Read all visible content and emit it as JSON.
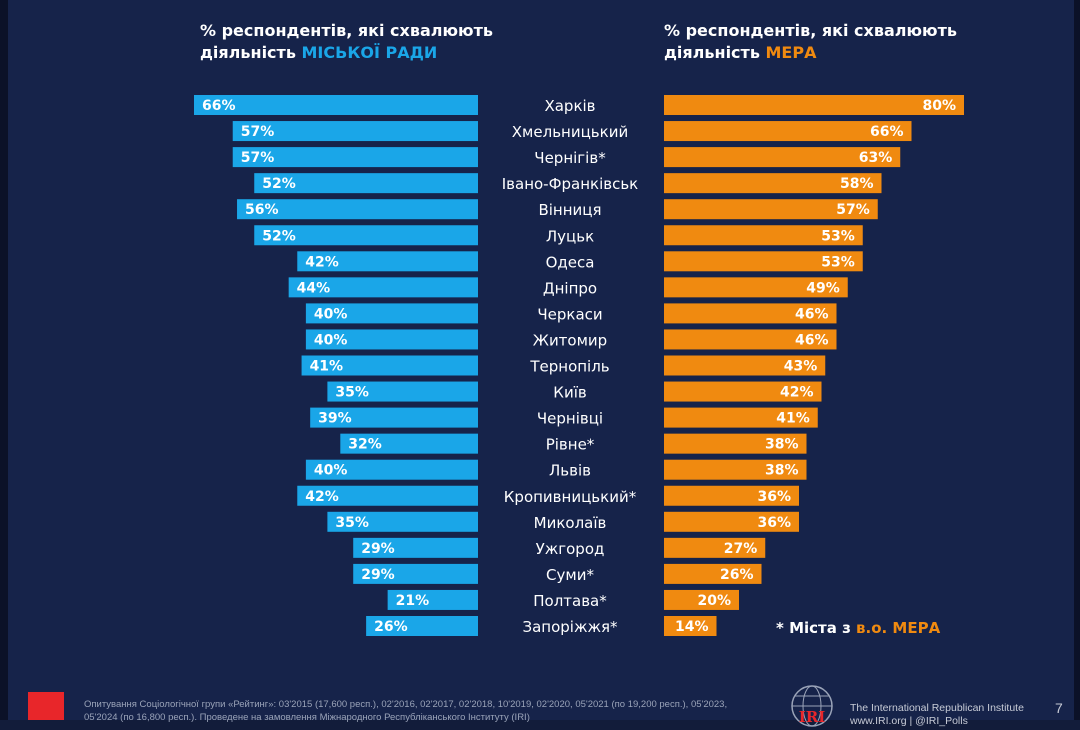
{
  "heading_left": {
    "line1": "% респондентів, які схвалюють",
    "line2_prefix": "діяльність ",
    "line2_accent": "МІСЬКОЇ РАДИ"
  },
  "heading_right": {
    "line1": "% респондентів, які схвалюють",
    "line2_prefix": "діяльність ",
    "line2_accent": "МЕРА"
  },
  "note": {
    "prefix": "* Міста з ",
    "accent": "в.о. МЕРА"
  },
  "colors": {
    "council": "#1aa6e8",
    "mayor": "#f08a10",
    "background": "#16234a"
  },
  "chart_data": {
    "type": "bar",
    "orientation": "horizontal-butterfly",
    "categories": [
      "Харків",
      "Хмельницький",
      "Чернігів*",
      "Івано-Франківськ",
      "Вінниця",
      "Луцьк",
      "Одеса",
      "Дніпро",
      "Черкаси",
      "Житомир",
      "Тернопіль",
      "Київ",
      "Чернівці",
      "Рівне*",
      "Львів",
      "Кропивницький*",
      "Миколаїв",
      "Ужгород",
      "Суми*",
      "Полтава*",
      "Запоріжжя*"
    ],
    "series": [
      {
        "name": "МІСЬКОЇ РАДИ",
        "values": [
          66,
          57,
          57,
          52,
          56,
          52,
          42,
          44,
          40,
          40,
          41,
          35,
          39,
          32,
          40,
          42,
          35,
          29,
          29,
          21,
          26
        ]
      },
      {
        "name": "МЕРА",
        "values": [
          80,
          66,
          63,
          58,
          57,
          53,
          53,
          49,
          46,
          46,
          43,
          42,
          41,
          38,
          38,
          36,
          36,
          27,
          26,
          20,
          14
        ]
      }
    ],
    "value_suffix": "%",
    "xlim": [
      0,
      100
    ]
  },
  "footer": {
    "source_line1": "Опитування Соціологічної групи «Рейтинг»: 03'2015 (17,600 респ.), 02'2016, 02'2017, 02'2018, 10'2019, 02'2020, 05'2021 (по 19,200 респ.), 05'2023,",
    "source_line2": "05'2024 (по 16,800 респ.). Проведене на замовлення Міжнародного Республіканського Інституту (IRI)",
    "org_name": "The International Republican Institute",
    "org_links": "www.IRI.org | @IRI_Polls",
    "logo_text": "IRI",
    "page_number": "7"
  }
}
